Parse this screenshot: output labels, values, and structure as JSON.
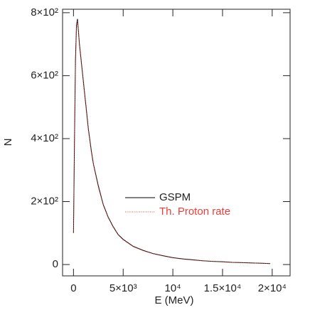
{
  "chart_data": {
    "type": "line",
    "x_label": "E (MeV)",
    "y_label": "N",
    "x": [
      0,
      100,
      200,
      300,
      400,
      500,
      600,
      800,
      1000,
      1200,
      1500,
      1800,
      2000,
      2500,
      3000,
      3500,
      4000,
      4500,
      5000,
      6000,
      7000,
      8000,
      9000,
      10000,
      11000,
      12000,
      13000,
      14000,
      15000,
      16000,
      17000,
      18000,
      19000,
      19800
    ],
    "series": [
      {
        "name": "GSPM",
        "color": "#000000",
        "style": "solid",
        "values": [
          100,
          400,
          650,
          760,
          780,
          740,
          700,
          640,
          580,
          520,
          430,
          360,
          320,
          250,
          190,
          150,
          120,
          95,
          80,
          58,
          45,
          35,
          28,
          22,
          18,
          15,
          12,
          10,
          9,
          7,
          6,
          5,
          4,
          3
        ]
      },
      {
        "name": "Th. Proton rate",
        "color": "#e8413c",
        "style": "dotted",
        "values": [
          100,
          380,
          640,
          750,
          775,
          745,
          695,
          635,
          575,
          515,
          425,
          355,
          318,
          245,
          188,
          148,
          118,
          94,
          78,
          57,
          44,
          34,
          27,
          21,
          17,
          14,
          12,
          10,
          8,
          7,
          6,
          5,
          4,
          3
        ]
      }
    ],
    "xlim": [
      -1100,
      21800
    ],
    "ylim": [
      -36,
      811
    ],
    "xticks": [
      {
        "value": 0,
        "label": "0"
      },
      {
        "value": 5000,
        "label": "5×10³"
      },
      {
        "value": 10000,
        "label": "10⁴"
      },
      {
        "value": 15000,
        "label": "1.5×10⁴"
      },
      {
        "value": 20000,
        "label": "2×10⁴"
      }
    ],
    "yticks": [
      {
        "value": 0,
        "label": "0"
      },
      {
        "value": 200,
        "label": "2×10²"
      },
      {
        "value": 400,
        "label": "4×10²"
      },
      {
        "value": 600,
        "label": "6×10²"
      },
      {
        "value": 800,
        "label": "8×10²"
      }
    ]
  }
}
